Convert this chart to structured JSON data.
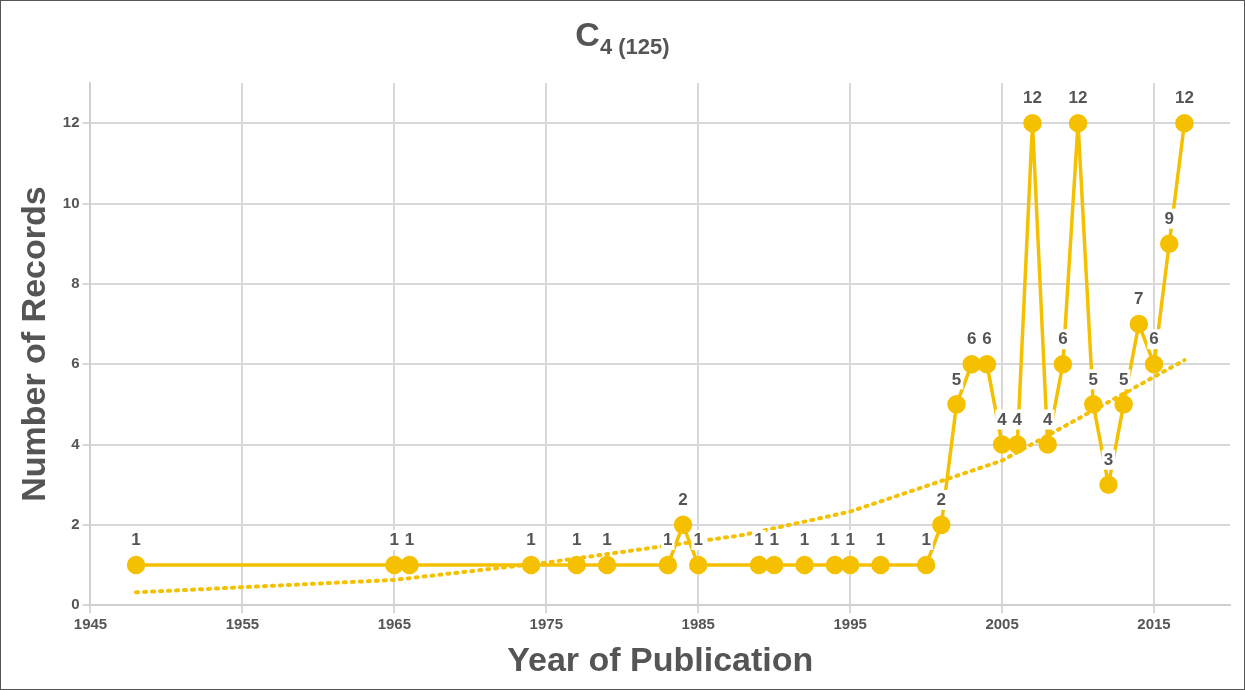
{
  "chart_data": {
    "type": "line",
    "title": "C$_{4 (125)}$",
    "xlabel": "Year of Publication",
    "ylabel": "Number of Records",
    "xlim": [
      1945,
      2020
    ],
    "xticks": [
      1945,
      1955,
      1965,
      1975,
      1985,
      1995,
      2005,
      2015
    ],
    "ylim": [
      0,
      13
    ],
    "yticks": [
      0,
      2,
      4,
      6,
      8,
      10,
      12
    ],
    "grid": true,
    "legend": false,
    "series": [
      {
        "color": "#f5c000",
        "marker": "circle",
        "line_style": "solid",
        "x": [
          1948,
          1965,
          1966,
          1974,
          1977,
          1979,
          1983,
          1984,
          1985,
          1989,
          1990,
          1992,
          1994,
          1995,
          1997,
          2000,
          2001,
          2002,
          2003,
          2004,
          2005,
          2006,
          2007,
          2008,
          2009,
          2010,
          2011,
          2012,
          2013,
          2014,
          2015,
          2016,
          2017
        ],
        "values": [
          1,
          1,
          1,
          1,
          1,
          1,
          1,
          2,
          1,
          1,
          1,
          1,
          1,
          1,
          1,
          1,
          2,
          5,
          6,
          6,
          4,
          4,
          12,
          4,
          6,
          12,
          5,
          3,
          5,
          7,
          6,
          9,
          12
        ],
        "value_labels": [
          "1",
          "1",
          "1",
          "1",
          "1",
          "1",
          "1",
          "2",
          "1",
          "1",
          "1",
          "1",
          "1",
          "1",
          "1",
          "1",
          "2",
          "5",
          "6",
          "6",
          "4",
          "4",
          "12",
          "4",
          "6",
          "12",
          "5",
          "3",
          "5",
          "7",
          "6",
          "9",
          "12"
        ]
      },
      {
        "color": "#f5c000",
        "marker": "none",
        "line_style": "dotted",
        "x": [
          1948,
          1965,
          1975,
          1988,
          1995,
          2005,
          2017
        ],
        "values": [
          0.32,
          0.63,
          1.06,
          1.75,
          2.33,
          3.6,
          6.1
        ]
      }
    ]
  }
}
